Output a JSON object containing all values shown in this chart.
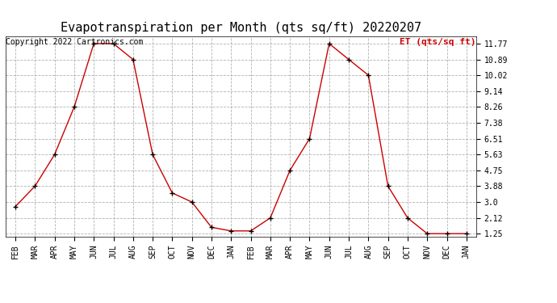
{
  "title": "Evapotranspiration per Month (qts sq/ft) 20220207",
  "copyright_text": "Copyright 2022 Cartronics.com",
  "legend_label": "ET (qts/sq ft)",
  "months": [
    "FEB",
    "MAR",
    "APR",
    "MAY",
    "JUN",
    "JUL",
    "AUG",
    "SEP",
    "OCT",
    "NOV",
    "DEC",
    "JAN",
    "FEB",
    "MAR",
    "APR",
    "MAY",
    "JUN",
    "JUL",
    "AUG",
    "SEP",
    "OCT",
    "NOV",
    "DEC",
    "JAN"
  ],
  "values": [
    2.75,
    3.88,
    5.63,
    8.26,
    11.77,
    11.77,
    10.89,
    5.63,
    3.5,
    3.0,
    1.6,
    1.4,
    1.4,
    2.12,
    4.75,
    6.51,
    11.77,
    10.89,
    10.02,
    3.88,
    2.12,
    1.25,
    1.25,
    1.25
  ],
  "yticks": [
    1.25,
    2.12,
    3.0,
    3.88,
    4.75,
    5.63,
    6.51,
    7.38,
    8.26,
    9.14,
    10.02,
    10.89,
    11.77
  ],
  "line_color": "#cc0000",
  "marker": "+",
  "marker_size": 5,
  "background_color": "#ffffff",
  "grid_color": "#aaaaaa",
  "title_fontsize": 11,
  "axis_tick_fontsize": 7,
  "legend_fontsize": 8,
  "copyright_fontsize": 7,
  "ylim_min": 1.25,
  "ylim_max": 11.77
}
